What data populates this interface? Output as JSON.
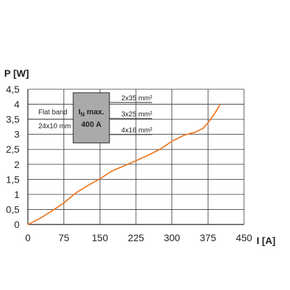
{
  "chart_data": {
    "type": "line",
    "xlabel": "I [A]",
    "ylabel": "P [W]",
    "xlim": [
      0,
      450
    ],
    "ylim": [
      0,
      4.5
    ],
    "x_ticks": [
      "0",
      "75",
      "150",
      "225",
      "300",
      "375",
      "450"
    ],
    "y_ticks": [
      "0",
      "0,5",
      "1",
      "1,5",
      "2",
      "2,5",
      "3",
      "3,5",
      "4",
      "4,5"
    ],
    "grid": true,
    "series": [
      {
        "color": "#f07820",
        "x": [
          0,
          25,
          50,
          75,
          100,
          125,
          150,
          175,
          200,
          225,
          250,
          275,
          300,
          325,
          350,
          365,
          375,
          390,
          400
        ],
        "y": [
          0,
          0.2,
          0.45,
          0.72,
          1.05,
          1.3,
          1.52,
          1.78,
          1.95,
          2.12,
          2.3,
          2.5,
          2.77,
          2.97,
          3.08,
          3.2,
          3.38,
          3.72,
          3.98
        ]
      }
    ],
    "annotations": {
      "left_label_line1": "Flat band",
      "left_label_line2": "24x10 mm",
      "box_line1": "I",
      "box_subscript": "N",
      "box_line1_suffix": " max.",
      "box_line2": "400 A",
      "right_labels": [
        "2x35 mm²",
        "3x25 mm²",
        "4x16 mm²"
      ]
    }
  }
}
